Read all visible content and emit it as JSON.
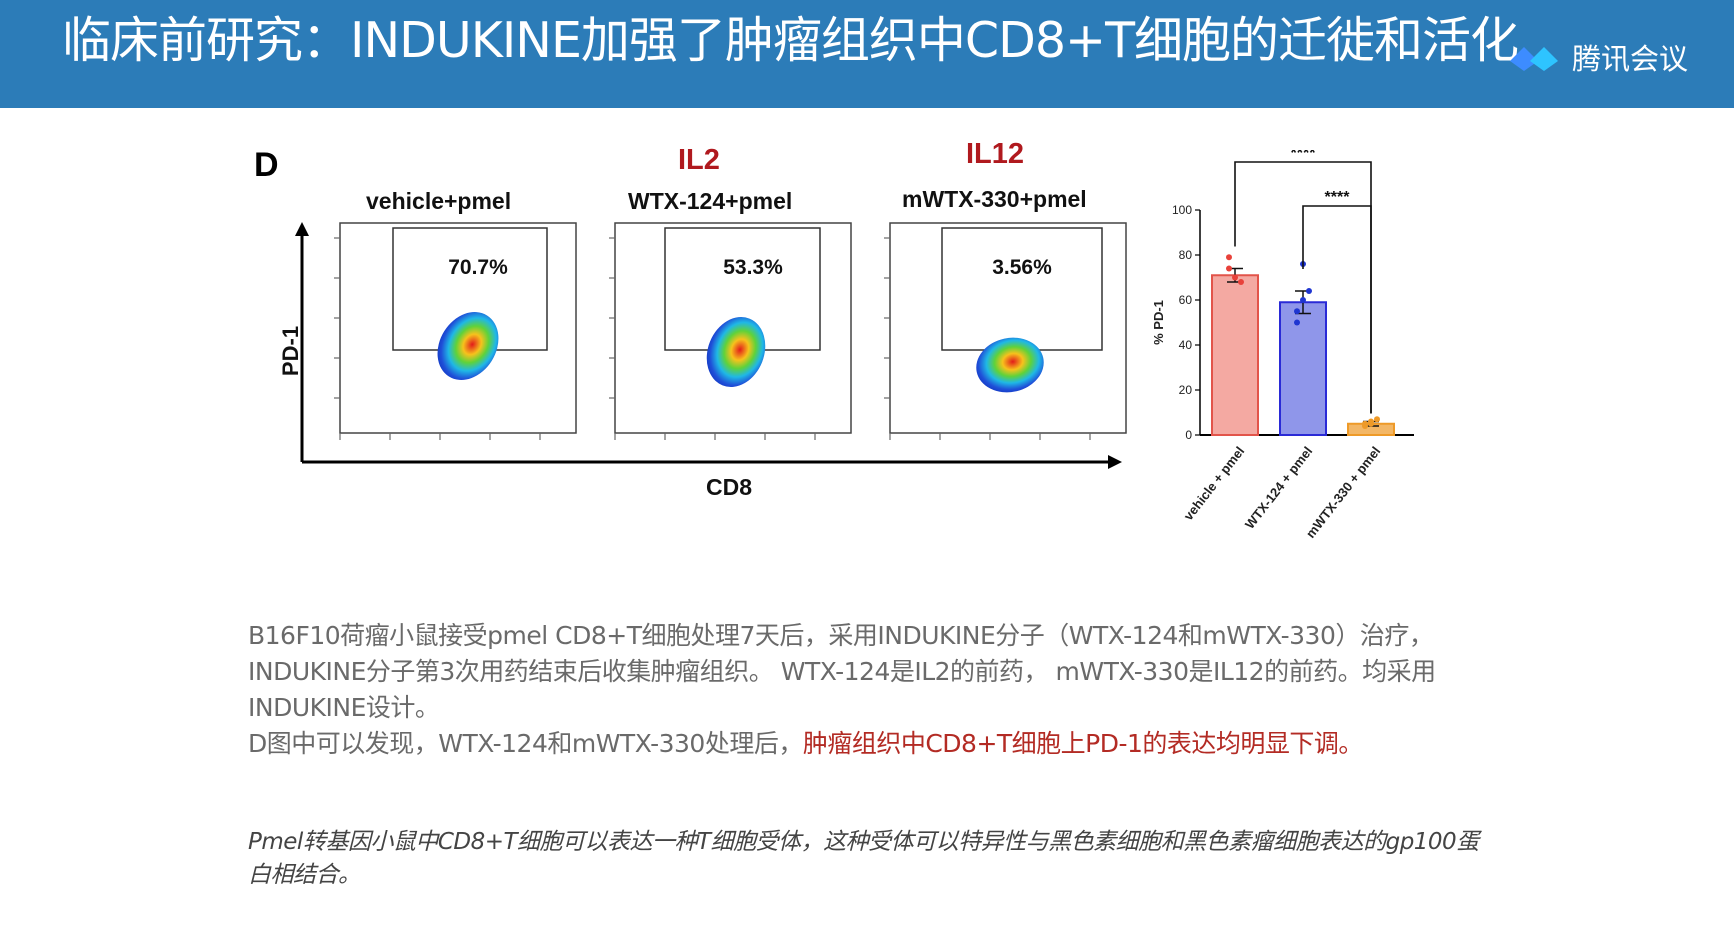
{
  "header": {
    "title": "临床前研究：INDUKINE加强了肿瘤组织中CD8+T细胞的迁徙和活化",
    "meeting_app": "腾讯会议"
  },
  "figure": {
    "panel_letter": "D",
    "drug_labels": [
      "IL2",
      "IL12"
    ],
    "flow_panels": [
      {
        "group": "vehicle+pmel",
        "gate_percent": "70.7%"
      },
      {
        "group": "WTX-124+pmel",
        "gate_percent": "53.3%"
      },
      {
        "group": "mWTX-330+pmel",
        "gate_percent": "3.56%"
      }
    ],
    "flow_y_axis_label": "PD-1",
    "flow_x_axis_label": "CD8"
  },
  "chart_data": {
    "type": "bar",
    "categories": [
      "vehicle + pmel",
      "WTX-124 + pmel",
      "mWTX-330 + pmel"
    ],
    "values": [
      71,
      59,
      5
    ],
    "errors": [
      3,
      5,
      1
    ],
    "points": [
      [
        74,
        70,
        68,
        79
      ],
      [
        55,
        60,
        64,
        50,
        76
      ],
      [
        4,
        5,
        7,
        5,
        6
      ]
    ],
    "colors": {
      "bar_fills": [
        "#f4a9a2",
        "#8f96ea",
        "#f3b766"
      ],
      "bar_strokes": [
        "#e2544a",
        "#2a2ad6",
        "#ee9a28"
      ],
      "dot_colors": [
        "#e8413a",
        "#1f36d1",
        "#ee9a28"
      ]
    },
    "ylabel": "% PD-1",
    "ylim": [
      0,
      100
    ],
    "yticks": [
      "0",
      "20",
      "40",
      "60",
      "80",
      "100"
    ],
    "significance": [
      {
        "from": "vehicle + pmel",
        "to": "mWTX-330 + pmel",
        "label": "****"
      },
      {
        "from": "WTX-124 + pmel",
        "to": "mWTX-330 + pmel",
        "label": "****"
      }
    ]
  },
  "body": {
    "paragraph1": "B16F10荷瘤小鼠接受pmel CD8+T细胞处理7天后，采用INDUKINE分子（WTX-124和mWTX-330）治疗，INDUKINE分子第3次用药结束后收集肿瘤组织。 WTX-124是IL2的前药， mWTX-330是IL12的前药。均采用INDUKINE设计。",
    "paragraph2_prefix": "D图中可以发现，WTX-124和mWTX-330处理后，",
    "paragraph2_highlight": "肿瘤组织中CD8+T细胞上PD-1的表达均明显下调。",
    "note": "Pmel转基因小鼠中CD8+T细胞可以表达一种T细胞受体，这种受体可以特异性与黑色素细胞和黑色素瘤细胞表达的gp100蛋白相结合。"
  }
}
